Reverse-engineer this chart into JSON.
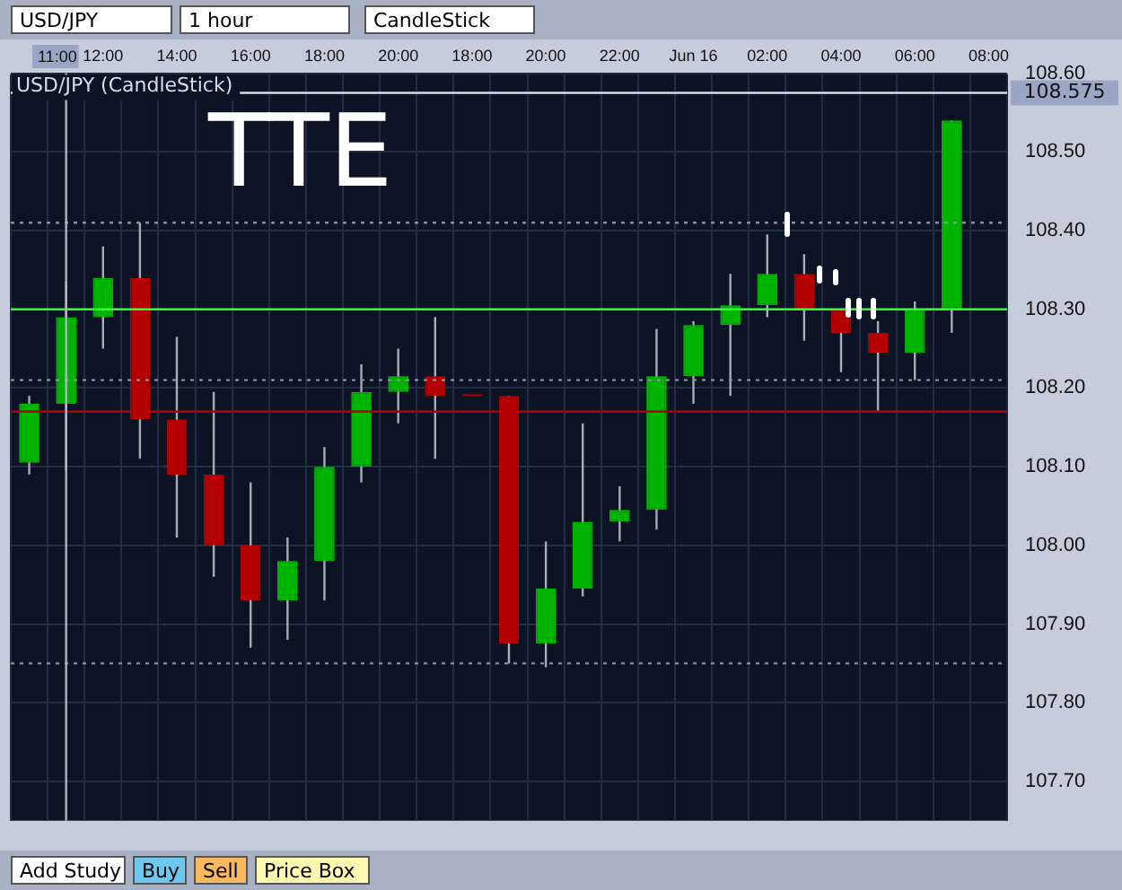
{
  "chart_data": {
    "type": "candlestick",
    "title": "USD/JPY (CandleStick)",
    "categories": [
      null,
      "11:00",
      "12:00",
      null,
      "14:00",
      null,
      "16:00",
      null,
      "18:00",
      null,
      "20:00",
      null,
      "18:00",
      null,
      "20:00",
      null,
      "22:00",
      null,
      "Jun 16",
      null,
      "02:00",
      null,
      "04:00",
      null,
      "06:00",
      null,
      "08:00"
    ],
    "ohlc": [
      [
        108.105,
        108.19,
        108.09,
        108.18
      ],
      [
        108.18,
        108.335,
        108.095,
        108.29
      ],
      [
        108.29,
        108.38,
        108.25,
        108.34
      ],
      [
        108.34,
        108.41,
        108.11,
        108.16
      ],
      [
        108.16,
        108.265,
        108.01,
        108.09
      ],
      [
        108.09,
        108.195,
        107.96,
        108.0
      ],
      [
        108.0,
        108.08,
        107.87,
        107.93
      ],
      [
        107.93,
        108.01,
        107.88,
        107.98
      ],
      [
        107.98,
        108.125,
        107.93,
        108.1
      ],
      [
        108.1,
        108.23,
        108.08,
        108.195
      ],
      [
        108.195,
        108.25,
        108.155,
        108.215
      ],
      [
        108.215,
        108.29,
        108.11,
        108.19
      ],
      [
        108.19,
        108.19,
        108.19,
        108.19
      ],
      [
        108.19,
        108.19,
        107.85,
        107.875
      ],
      [
        107.875,
        108.005,
        107.845,
        107.945
      ],
      [
        107.945,
        108.155,
        107.935,
        108.03
      ],
      [
        108.03,
        108.075,
        108.005,
        108.045
      ],
      [
        108.045,
        108.275,
        108.02,
        108.215
      ],
      [
        108.215,
        108.285,
        108.18,
        108.28
      ],
      [
        108.28,
        108.345,
        108.19,
        108.305
      ],
      [
        108.305,
        108.395,
        108.29,
        108.345
      ],
      [
        108.345,
        108.37,
        108.26,
        108.3
      ],
      [
        108.3,
        108.3,
        108.22,
        108.27
      ],
      [
        108.27,
        108.285,
        108.17,
        108.245
      ],
      [
        108.245,
        108.31,
        108.21,
        108.3
      ],
      [
        108.3,
        108.54,
        108.27,
        108.54
      ],
      null
    ],
    "colors": [
      "#00b400",
      "#00b400",
      "#00b400",
      "#b40000",
      "#b40000",
      "#b40000",
      "#b40000",
      "#00b400",
      "#00b400",
      "#00b400",
      "#00b400",
      "#b40000",
      "#b40000",
      "#b40000",
      "#00b400",
      "#00b400",
      "#00b400",
      "#00b400",
      "#00b400",
      "#00b400",
      "#00b400",
      "#b40000",
      "#b40000",
      "#b40000",
      "#00b400",
      "#00b400",
      null
    ],
    "ylim": [
      107.65,
      108.6
    ],
    "yticks": [
      {
        "value": 107.7,
        "label": "107.70"
      },
      {
        "value": 107.8,
        "label": "107.80"
      },
      {
        "value": 107.9,
        "label": "107.90"
      },
      {
        "value": 108.0,
        "label": "108.00"
      },
      {
        "value": 108.1,
        "label": "108.10"
      },
      {
        "value": 108.2,
        "label": "108.20"
      },
      {
        "value": 108.3,
        "label": "108.30"
      },
      {
        "value": 108.4,
        "label": "108.40"
      },
      {
        "value": 108.5,
        "label": "108.50"
      },
      {
        "value": 108.6,
        "label": "108.60"
      }
    ],
    "grid": true,
    "ref_lines": [
      {
        "axis": "y",
        "value": 108.575,
        "label": "108.575",
        "color": "#d8dce8",
        "line_style": "solid"
      },
      {
        "axis": "y",
        "value": 108.3,
        "color": "#33ff33",
        "line_style": "solid"
      },
      {
        "axis": "y",
        "value": 108.17,
        "color": "#b40000",
        "line_style": "solid"
      },
      {
        "axis": "y",
        "value": 108.41,
        "color": "#8890a0",
        "line_style": "dotted"
      },
      {
        "axis": "y",
        "value": 108.21,
        "color": "#8890a0",
        "line_style": "dotted"
      },
      {
        "axis": "y",
        "value": 107.85,
        "color": "#8890a0",
        "line_style": "dotted"
      },
      {
        "axis": "x",
        "value": "11:00",
        "color": "#b0b4c0",
        "line_style": "solid"
      }
    ],
    "annotations": [
      "TTE",
      "USD/JPY",
      "1 hour",
      "CandleStick",
      "Add Study",
      "Buy",
      "Sell",
      "Price Box"
    ]
  }
}
